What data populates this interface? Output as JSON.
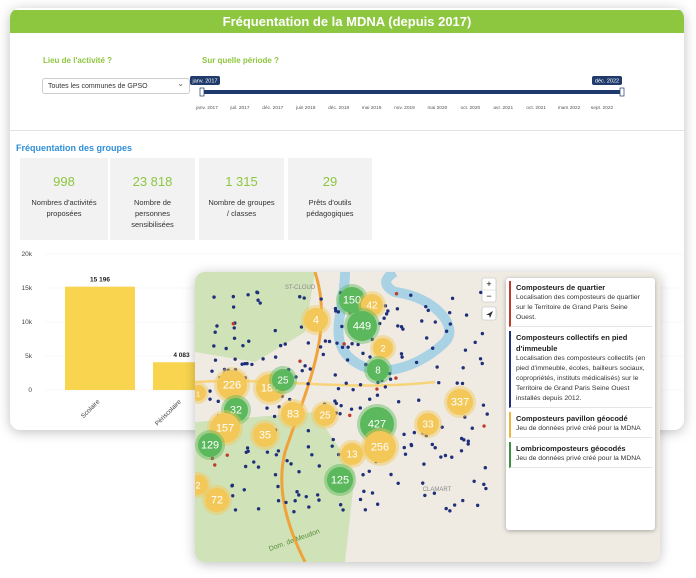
{
  "header": {
    "title": "Fréquentation de la MDNA (depuis 2017)"
  },
  "filters": {
    "place_label": "Lieu de l'activité ?",
    "place_value": "Toutes les communes de GPSO",
    "period_label": "Sur quelle période ?",
    "range_start": "janv. 2017",
    "range_end": "déc. 2022",
    "timeline_ticks": [
      "janv. 2017",
      "juil. 2017",
      "déc. 2017",
      "juin 2018",
      "déc. 2018",
      "mai 2019",
      "nov. 2019",
      "mai 2020",
      "oct. 2020",
      "avr. 2021",
      "oct. 2021",
      "mars 2022",
      "sept. 2022"
    ]
  },
  "section_title": "Fréquentation des groupes",
  "kpis": [
    {
      "value": "998",
      "label": "Nombres d'activités proposées"
    },
    {
      "value": "23 818",
      "label": "Nombre de personnes sensibilisées"
    },
    {
      "value": "1 315",
      "label": "Nombre de groupes / classes"
    },
    {
      "value": "29",
      "label": "Prêts d'outils pédagogiques"
    }
  ],
  "chart_data": {
    "type": "bar",
    "categories": [
      "Scolaire",
      "Périscolaire"
    ],
    "values": [
      15196,
      4083
    ],
    "value_labels": [
      "15 196",
      "4 083"
    ],
    "color": "#f9d54f",
    "ylim": [
      0,
      20000
    ],
    "yticks": [
      0,
      {
        "value": 5000,
        "label": "5k"
      },
      {
        "value": 10000,
        "label": "10k"
      },
      {
        "value": 15000,
        "label": "15k"
      },
      {
        "value": 20000,
        "label": "20k"
      }
    ]
  },
  "map": {
    "controls": [
      "+",
      "−"
    ],
    "place_names": [
      "ST-CLOUD",
      "CLAMART",
      "Dom. de Meudon"
    ],
    "clusters": [
      {
        "label": "150",
        "color": "#5cb85c"
      },
      {
        "label": "42",
        "color": "#f3c859"
      },
      {
        "label": "4",
        "color": "#f3c859"
      },
      {
        "label": "449",
        "color": "#5cb85c"
      },
      {
        "label": "2",
        "color": "#f3c859"
      },
      {
        "label": "8",
        "color": "#5cb85c"
      },
      {
        "label": "226",
        "color": "#f3c859"
      },
      {
        "label": "180",
        "color": "#f3c859"
      },
      {
        "label": "25",
        "color": "#5cb85c"
      },
      {
        "label": "32",
        "color": "#5cb85c"
      },
      {
        "label": "83",
        "color": "#f3c859"
      },
      {
        "label": "25",
        "color": "#f3c859"
      },
      {
        "label": "157",
        "color": "#f3c859"
      },
      {
        "label": "35",
        "color": "#f3c859"
      },
      {
        "label": "427",
        "color": "#5cb85c"
      },
      {
        "label": "256",
        "color": "#f3c859"
      },
      {
        "label": "13",
        "color": "#f3c859"
      },
      {
        "label": "337",
        "color": "#f3c859"
      },
      {
        "label": "33",
        "color": "#f3c859"
      },
      {
        "label": "129",
        "color": "#5cb85c"
      },
      {
        "label": "2",
        "color": "#f3c859"
      },
      {
        "label": "125",
        "color": "#5cb85c"
      },
      {
        "label": "72",
        "color": "#f3c859"
      },
      {
        "label": "1",
        "color": "#f3c859"
      }
    ],
    "legend": [
      {
        "title": "Composteurs de quartier",
        "description": "Localisation des composteurs de quartier sur le Territoire de Grand Paris Seine Ouest.",
        "color": "#c0392b"
      },
      {
        "title": "Composteurs collectifs en pied d'immeuble",
        "description": "Localisation des composteurs collectifs (en pied d'immeuble, écoles, bailleurs sociaux, copropriétés, instituts médicalisés) sur le Territoire de Grand Paris Seine Ouest installés depuis 2012.",
        "color": "#1f2f7a"
      },
      {
        "title": "Composteurs pavillon géocodé",
        "description": "Jeu de données privé créé pour la MDNA",
        "color": "#f0b43c"
      },
      {
        "title": "Lombricomposteurs géocodés",
        "description": "Jeu de données privé créé pour la MDNA",
        "color": "#3f8f3f"
      }
    ]
  }
}
